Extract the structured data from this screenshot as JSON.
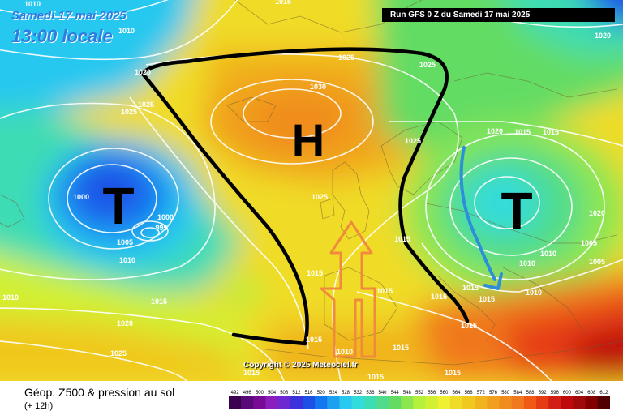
{
  "header": {
    "date_line": "Samedi 17 mai 2025",
    "time_line": "13:00 locale",
    "run_info": "Run GFS 0 Z du Samedi 17 mai 2025"
  },
  "copyright": "Copyright © 2025 Meteociel.fr",
  "footer": {
    "title": "Géop. Z500 & pression au sol",
    "subtitle": "(+ 12h)"
  },
  "systems": [
    {
      "label": "H",
      "kind": "high"
    },
    {
      "label": "T",
      "kind": "low-atlantic"
    },
    {
      "label": "T",
      "kind": "low-central-europe"
    }
  ],
  "isobars": [
    "1010",
    "1010",
    "1015",
    "1020",
    "1025",
    "1025",
    "1025",
    "1030",
    "1025",
    "1025",
    "1025",
    "1020",
    "1020",
    "1015",
    "1015",
    "1000",
    "1000",
    "995",
    "1005",
    "1010",
    "1010",
    "1015",
    "1020",
    "1025",
    "1015",
    "1015",
    "1015",
    "1015",
    "1015",
    "1015",
    "1010",
    "1010",
    "1005",
    "1005",
    "1010",
    "1015",
    "1015",
    "1015",
    "1015",
    "1010",
    "1015",
    "1015",
    "1020"
  ],
  "legend_values": [
    "492",
    "496",
    "500",
    "504",
    "508",
    "512",
    "516",
    "520",
    "524",
    "528",
    "532",
    "536",
    "540",
    "544",
    "548",
    "552",
    "556",
    "560",
    "564",
    "568",
    "572",
    "576",
    "580",
    "584",
    "588",
    "592",
    "596",
    "600",
    "604",
    "608",
    "612"
  ],
  "legend_colors": [
    "#3c0050",
    "#5a0a78",
    "#780a96",
    "#8c1ebe",
    "#6e28d2",
    "#3c32dc",
    "#1e50e6",
    "#1478f0",
    "#1ea0f0",
    "#28c8f0",
    "#32dcdc",
    "#3cdcb4",
    "#50dc8c",
    "#64dc64",
    "#8ce650",
    "#b4f03c",
    "#d2f032",
    "#f0f032",
    "#f0dc28",
    "#f0c81e",
    "#f0b41e",
    "#f0a01e",
    "#f08c1e",
    "#f0781e",
    "#f05a14",
    "#e63c14",
    "#d21e14",
    "#be0a0a",
    "#a00a0a",
    "#820000",
    "#500000"
  ],
  "colors": {
    "label_blue": "#2d7de0",
    "trough_line": "#000000",
    "arrow_orange": "#f08a3c",
    "arrow_blue": "#2d8fd8",
    "isobar": "#ffffff"
  }
}
